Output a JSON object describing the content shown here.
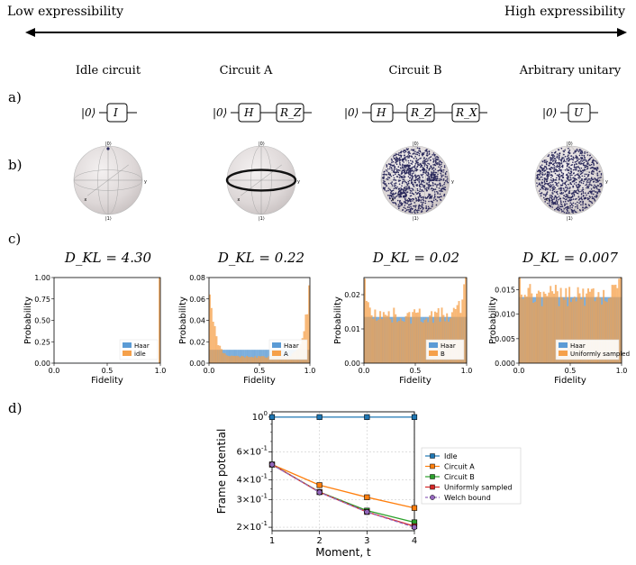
{
  "header": {
    "low_label": "Low expressibility",
    "high_label": "High expressibility"
  },
  "row_labels": [
    "a)",
    "b)",
    "c)",
    "d)"
  ],
  "columns": [
    {
      "title": "Idle circuit",
      "circuit": {
        "ket": "|0⟩",
        "gates": [
          "I"
        ]
      },
      "sphere": {
        "pole_top": "|0⟩",
        "pole_bottom": "|1⟩",
        "axis_x": "x",
        "axis_y": "y",
        "samples": "point"
      },
      "dkl": "D_KL = 4.30",
      "hist": {
        "ylim": [
          0,
          1.0
        ],
        "yticks": [
          "0.00",
          "0.25",
          "0.50",
          "0.75",
          "1.00"
        ],
        "xticks": [
          "0.0",
          "0.5",
          "1.0"
        ],
        "xlabel": "Fidelity",
        "ylabel": "Probability",
        "legend": [
          "Haar",
          "idle"
        ],
        "haar_level": 0.01,
        "spike": 1.0
      }
    },
    {
      "title": "Circuit A",
      "circuit": {
        "ket": "|0⟩",
        "gates": [
          "H",
          "R_Z"
        ]
      },
      "sphere": {
        "pole_top": "|0⟩",
        "pole_bottom": "|1⟩",
        "axis_x": "x",
        "axis_y": "y",
        "samples": "equator"
      },
      "dkl": "D_KL = 0.22",
      "hist": {
        "ylim": [
          0,
          0.08
        ],
        "yticks": [
          "0.00",
          "0.02",
          "0.04",
          "0.06",
          "0.08"
        ],
        "xticks": [
          "0.0",
          "0.5",
          "1.0"
        ],
        "xlabel": "Fidelity",
        "ylabel": "Probability",
        "legend": [
          "Haar",
          "A"
        ],
        "haar_level": 0.0125,
        "edge_peak": 0.075
      }
    },
    {
      "title": "Circuit B",
      "circuit": {
        "ket": "|0⟩",
        "gates": [
          "H",
          "R_Z",
          "R_X"
        ]
      },
      "sphere": {
        "pole_top": "|0⟩",
        "pole_bottom": "|1⟩",
        "axis_x": "x",
        "axis_y": "y",
        "samples": "dense"
      },
      "dkl": "D_KL = 0.02",
      "hist": {
        "ylim": [
          0,
          0.025
        ],
        "yticks": [
          "0.00",
          "0.01",
          "0.02"
        ],
        "xticks": [
          "0.0",
          "0.5",
          "1.0"
        ],
        "xlabel": "Fidelity",
        "ylabel": "Probability",
        "legend": [
          "Haar",
          "B"
        ],
        "haar_level": 0.0135,
        "edge_peak": 0.024
      }
    },
    {
      "title": "Arbitrary unitary",
      "circuit": {
        "ket": "|0⟩",
        "gates": [
          "U"
        ]
      },
      "sphere": {
        "pole_top": "|0⟩",
        "pole_bottom": "|1⟩",
        "axis_x": "x",
        "axis_y": "y",
        "samples": "uniform"
      },
      "dkl": "D_KL = 0.007",
      "hist": {
        "ylim": [
          0,
          0.0175
        ],
        "yticks": [
          "0.000",
          "0.005",
          "0.010",
          "0.015"
        ],
        "xticks": [
          "0.0",
          "0.5",
          "1.0"
        ],
        "xlabel": "Fidelity",
        "ylabel": "Probability",
        "legend": [
          "Haar",
          "Uniformly sampled"
        ],
        "haar_level": 0.0135,
        "edge_peak": 0.0165
      }
    }
  ],
  "chart_data": {
    "type": "line",
    "xlabel": "Moment, t",
    "ylabel": "Frame potential",
    "x": [
      1,
      2,
      3,
      4
    ],
    "xticks": [
      "1",
      "2",
      "3",
      "4"
    ],
    "yscale": "log",
    "ylim": [
      0.19,
      1.08
    ],
    "yticks": [
      {
        "value": 1.0,
        "label": "10^0"
      },
      {
        "value": 0.6,
        "label": "6×10^-1"
      },
      {
        "value": 0.4,
        "label": "4×10^-1"
      },
      {
        "value": 0.3,
        "label": "3×10^-1"
      },
      {
        "value": 0.2,
        "label": "2×10^-1"
      }
    ],
    "grid": true,
    "legend_position": "right",
    "series": [
      {
        "name": "Idle",
        "color": "#1f77b4",
        "marker": "square",
        "values": [
          1.0,
          1.0,
          1.0,
          1.0
        ]
      },
      {
        "name": "Circuit A",
        "color": "#ff7f0e",
        "marker": "square",
        "values": [
          0.5,
          0.37,
          0.31,
          0.265
        ]
      },
      {
        "name": "Circuit B",
        "color": "#2ca02c",
        "marker": "square",
        "values": [
          0.5,
          0.335,
          0.255,
          0.215
        ]
      },
      {
        "name": "Uniformly sampled",
        "color": "#d62728",
        "marker": "square",
        "values": [
          0.5,
          0.334,
          0.25,
          0.203
        ]
      },
      {
        "name": "Welch bound",
        "color": "#9467bd",
        "marker": "circle",
        "dashed": true,
        "values": [
          0.5,
          0.333,
          0.25,
          0.2
        ]
      }
    ]
  },
  "colors": {
    "haar": "#5b9bd5",
    "sample": "#f5a04a",
    "overlap": "#c7803a",
    "dots": "#2b2a5c"
  }
}
